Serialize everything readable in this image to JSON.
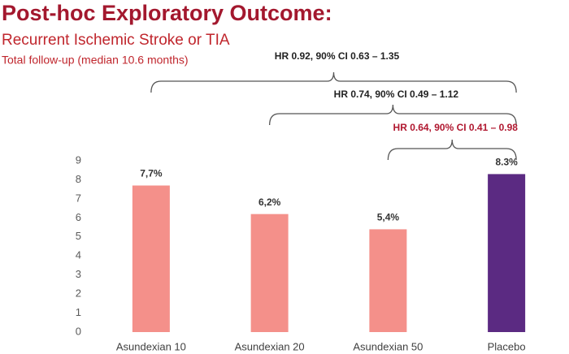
{
  "chart_data": {
    "type": "bar",
    "title": "Post-hoc Exploratory Outcome:",
    "subtitle": "Recurrent Ischemic Stroke or TIA",
    "note": "Total follow-up (median 10.6 months)",
    "categories": [
      "Asundexian 10",
      "Asundexian 20",
      "Asundexian 50",
      "Placebo"
    ],
    "values": [
      7.7,
      6.2,
      5.4,
      8.3
    ],
    "value_labels": [
      "7,7%",
      "6,2%",
      "5,4%",
      "8.3%"
    ],
    "colors": [
      "#f4908a",
      "#f4908a",
      "#f4908a",
      "#5b2a82"
    ],
    "ylim": [
      0,
      9
    ],
    "yticks": [
      0,
      1,
      2,
      3,
      4,
      5,
      6,
      7,
      8,
      9
    ],
    "grid": false,
    "annotations": [
      {
        "text": "HR 0.92, 90% CI 0.63 – 1.35",
        "color": "#222222"
      },
      {
        "text": "HR 0.74, 90% CI 0.49 – 1.12",
        "color": "#222222"
      },
      {
        "text": "HR 0.64, 90% CI 0.41 – 0.98",
        "color": "#b0172f"
      }
    ]
  }
}
